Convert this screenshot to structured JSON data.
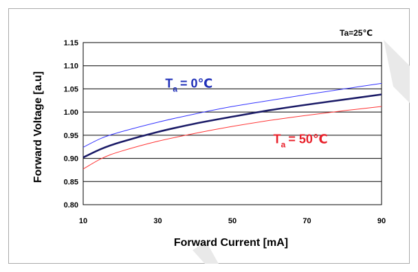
{
  "chart_data": {
    "type": "line",
    "title": "",
    "condition": "Ta=25℃",
    "xlabel": "Forward Current  [mA]",
    "ylabel": "Forward Voltage [a.u]",
    "xlim": [
      10,
      90
    ],
    "ylim": [
      0.8,
      1.15
    ],
    "x_ticks": [
      10,
      30,
      50,
      70,
      90
    ],
    "x_tick_labels": [
      "10",
      "30",
      "50",
      "70",
      "90"
    ],
    "y_ticks": [
      0.8,
      0.85,
      0.9,
      0.95,
      1.0,
      1.05,
      1.1,
      1.15
    ],
    "y_tick_labels": [
      "0.80",
      "0.85",
      "0.90",
      "0.95",
      "1.00",
      "1.05",
      "1.10",
      "1.15"
    ],
    "grid": "horizontal",
    "series": [
      {
        "color": "#3333ff",
        "x": [
          10,
          15,
          20,
          30,
          40,
          50,
          60,
          70,
          80,
          90
        ],
        "y": [
          0.924,
          0.944,
          0.957,
          0.978,
          0.996,
          1.012,
          1.025,
          1.038,
          1.05,
          1.062
        ]
      },
      {
        "color": "#1a1a66",
        "x": [
          10,
          15,
          20,
          30,
          40,
          50,
          60,
          70,
          80,
          90
        ],
        "y": [
          0.902,
          0.921,
          0.935,
          0.957,
          0.975,
          0.99,
          1.004,
          1.016,
          1.027,
          1.038
        ]
      },
      {
        "color": "#ff3333",
        "x": [
          10,
          15,
          20,
          30,
          40,
          50,
          60,
          70,
          80,
          90
        ],
        "y": [
          0.877,
          0.9,
          0.915,
          0.937,
          0.954,
          0.969,
          0.982,
          0.993,
          1.003,
          1.012
        ]
      }
    ],
    "annotations": [
      {
        "main": "T",
        "sub": "a",
        "rest": "= 0℃",
        "color": "#1f2fb8",
        "at_x": 32,
        "at_y": 1.053
      },
      {
        "main": "T",
        "sub": "a",
        "rest": "= 50℃",
        "color": "#e8202a",
        "at_x": 61,
        "at_y": 0.933
      }
    ]
  }
}
